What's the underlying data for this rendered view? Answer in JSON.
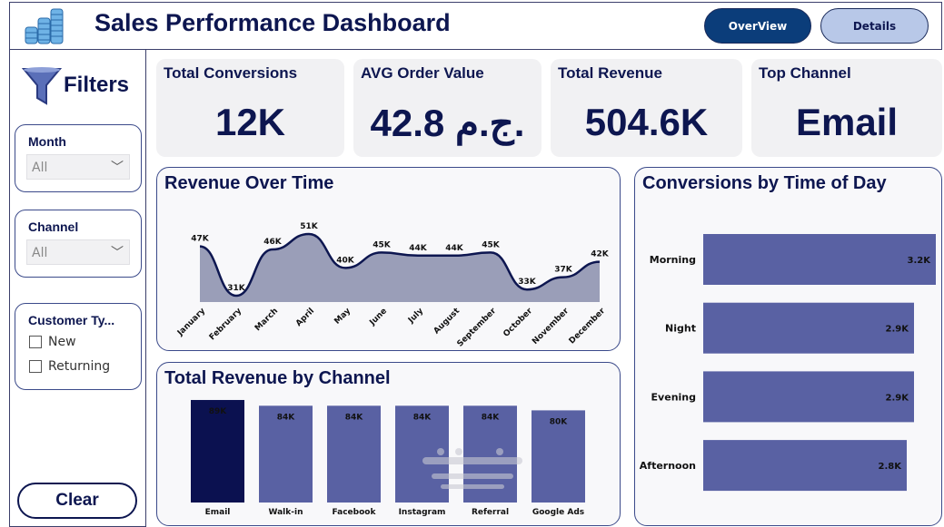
{
  "header": {
    "title": "Sales Performance Dashboard",
    "buttons": [
      {
        "label": "OverView",
        "active": true
      },
      {
        "label": "Details",
        "active": false
      }
    ]
  },
  "filters": {
    "title": "Filters",
    "month": {
      "label": "Month",
      "value": "All"
    },
    "channel": {
      "label": "Channel",
      "value": "All"
    },
    "customer_type": {
      "label": "Customer Ty...",
      "options": [
        {
          "label": "New",
          "checked": false
        },
        {
          "label": "Returning",
          "checked": false
        }
      ]
    },
    "clear_label": "Clear"
  },
  "kpis": [
    {
      "label": "Total Conversions",
      "value": "12K"
    },
    {
      "label": "AVG Order Value",
      "value": "42.8 ج.م."
    },
    {
      "label": "Total Revenue",
      "value": "504.6K"
    },
    {
      "label": "Top Channel",
      "value": "Email"
    }
  ],
  "colors": {
    "navy": "#0d1650",
    "bar": "#5961a3",
    "highlight": "#0b1150",
    "area": "#9a9eb8",
    "button_active": "#0b3d7a",
    "button_inactive": "#b8c8e8"
  },
  "watermark": "مستقل mostaql.com",
  "chart_data": [
    {
      "type": "area",
      "title": "Revenue Over Time",
      "categories": [
        "January",
        "February",
        "March",
        "April",
        "May",
        "June",
        "July",
        "August",
        "September",
        "October",
        "November",
        "December"
      ],
      "values": [
        47,
        31,
        46,
        51,
        40,
        45,
        44,
        44,
        45,
        33,
        37,
        42
      ],
      "labels": [
        "47K",
        "31K",
        "46K",
        "51K",
        "40K",
        "45K",
        "44K",
        "44K",
        "45K",
        "33K",
        "37K",
        "42K"
      ],
      "unit": "K"
    },
    {
      "type": "bar",
      "title": "Total Revenue by Channel",
      "categories": [
        "Email",
        "Walk-in",
        "Facebook",
        "Instagram",
        "Referral",
        "Google Ads"
      ],
      "values": [
        89,
        84,
        84,
        84,
        84,
        80
      ],
      "labels": [
        "89K",
        "84K",
        "84K",
        "84K",
        "84K",
        "80K"
      ],
      "highlight": "Email"
    },
    {
      "type": "bar",
      "orientation": "horizontal",
      "title": "Conversions by Time of Day",
      "categories": [
        "Morning",
        "Night",
        "Evening",
        "Afternoon"
      ],
      "values": [
        3.2,
        2.9,
        2.9,
        2.8
      ],
      "labels": [
        "3.2K",
        "2.9K",
        "2.9K",
        "2.8K"
      ]
    }
  ]
}
